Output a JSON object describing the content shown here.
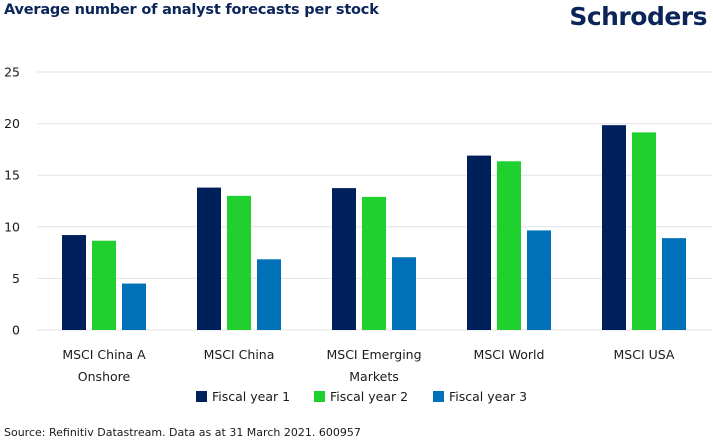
{
  "header": {
    "title": "Average number of analyst forecasts per stock",
    "logo": "Schroders"
  },
  "footer": {
    "source": "Source: Refinitiv Datastream. Data as at 31 March 2021. 600957"
  },
  "colors": {
    "title": "#0b2559",
    "fiscal_year_1": "#00205b",
    "fiscal_year_2": "#1fd02f",
    "fiscal_year_3": "#0070b9",
    "grid": "#e3e3e3"
  },
  "chart_data": {
    "type": "bar",
    "title": "Average number of analyst forecasts per stock",
    "xlabel": "",
    "ylabel": "",
    "ylim": [
      0,
      25
    ],
    "yticks": [
      0,
      5,
      10,
      15,
      20,
      25
    ],
    "grid": true,
    "legend_position": "bottom",
    "categories": [
      [
        "MSCI China A",
        "Onshore"
      ],
      [
        "MSCI China"
      ],
      [
        "MSCI Emerging",
        "Markets"
      ],
      [
        "MSCI World"
      ],
      [
        "MSCI USA"
      ]
    ],
    "series": [
      {
        "name": "Fiscal year 1",
        "color": "#00205b",
        "values": [
          9.2,
          13.8,
          13.75,
          16.9,
          19.85
        ]
      },
      {
        "name": "Fiscal year 2",
        "color": "#1fd02f",
        "values": [
          8.65,
          13.0,
          12.9,
          16.35,
          19.15
        ]
      },
      {
        "name": "Fiscal year 3",
        "color": "#0070b9",
        "values": [
          4.5,
          6.85,
          7.05,
          9.65,
          8.9
        ]
      }
    ]
  }
}
